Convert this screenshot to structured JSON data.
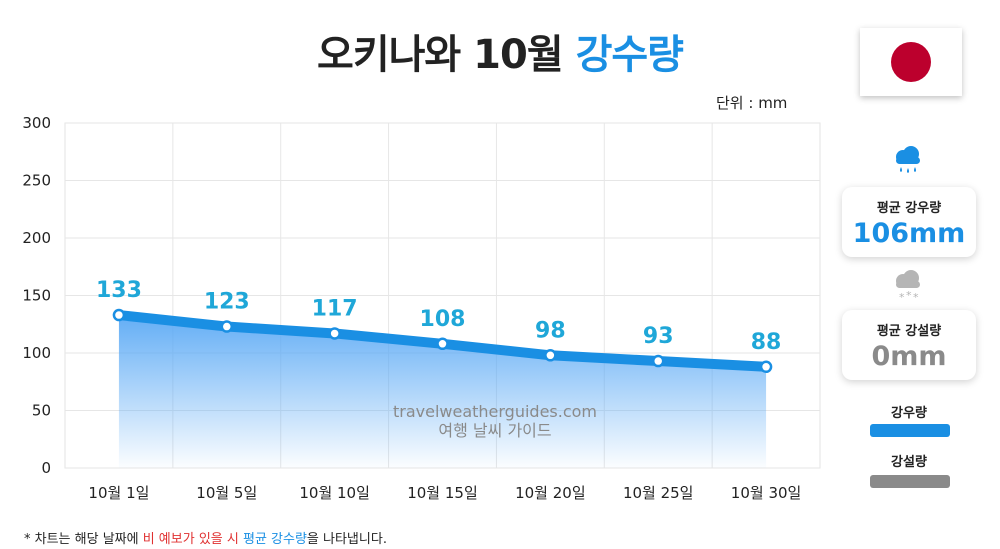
{
  "title": {
    "main": "오키나와 10월",
    "accent": "강수량"
  },
  "unit_label": "단위 : mm",
  "watermark": {
    "line1": "travelweatherguides.com",
    "line2": "여행 날씨 가이드"
  },
  "cards": {
    "rain": {
      "label": "평균 강우량",
      "value": "106mm"
    },
    "snow": {
      "label": "평균 강설량",
      "value": "0mm"
    }
  },
  "legend": {
    "rain": {
      "label": "강우량",
      "color": "#1a8fe3"
    },
    "snow": {
      "label": "강설량",
      "color": "#8a8a8a"
    }
  },
  "footnote": {
    "prefix": "* 차트는 해당 날짜에 ",
    "red": "비 예보가 있을 시",
    "mid": " ",
    "blue": "평균 강수량",
    "suffix": "을 나타냅니다."
  },
  "icons": {
    "rain": "rain-cloud-icon",
    "snow": "snow-cloud-icon",
    "flag": "japan-flag"
  },
  "chart_data": {
    "type": "area",
    "categories": [
      "10월 1일",
      "10월 5일",
      "10월 10일",
      "10월 15일",
      "10월 20일",
      "10월 25일",
      "10월 30일"
    ],
    "series": [
      {
        "name": "강우량",
        "values": [
          133,
          123,
          117,
          108,
          98,
          93,
          88
        ],
        "color": "#1a8fe3"
      }
    ],
    "ylim": [
      0,
      300
    ],
    "yticks": [
      0,
      50,
      100,
      150,
      200,
      250,
      300
    ],
    "grid": true,
    "data_labels": true
  }
}
